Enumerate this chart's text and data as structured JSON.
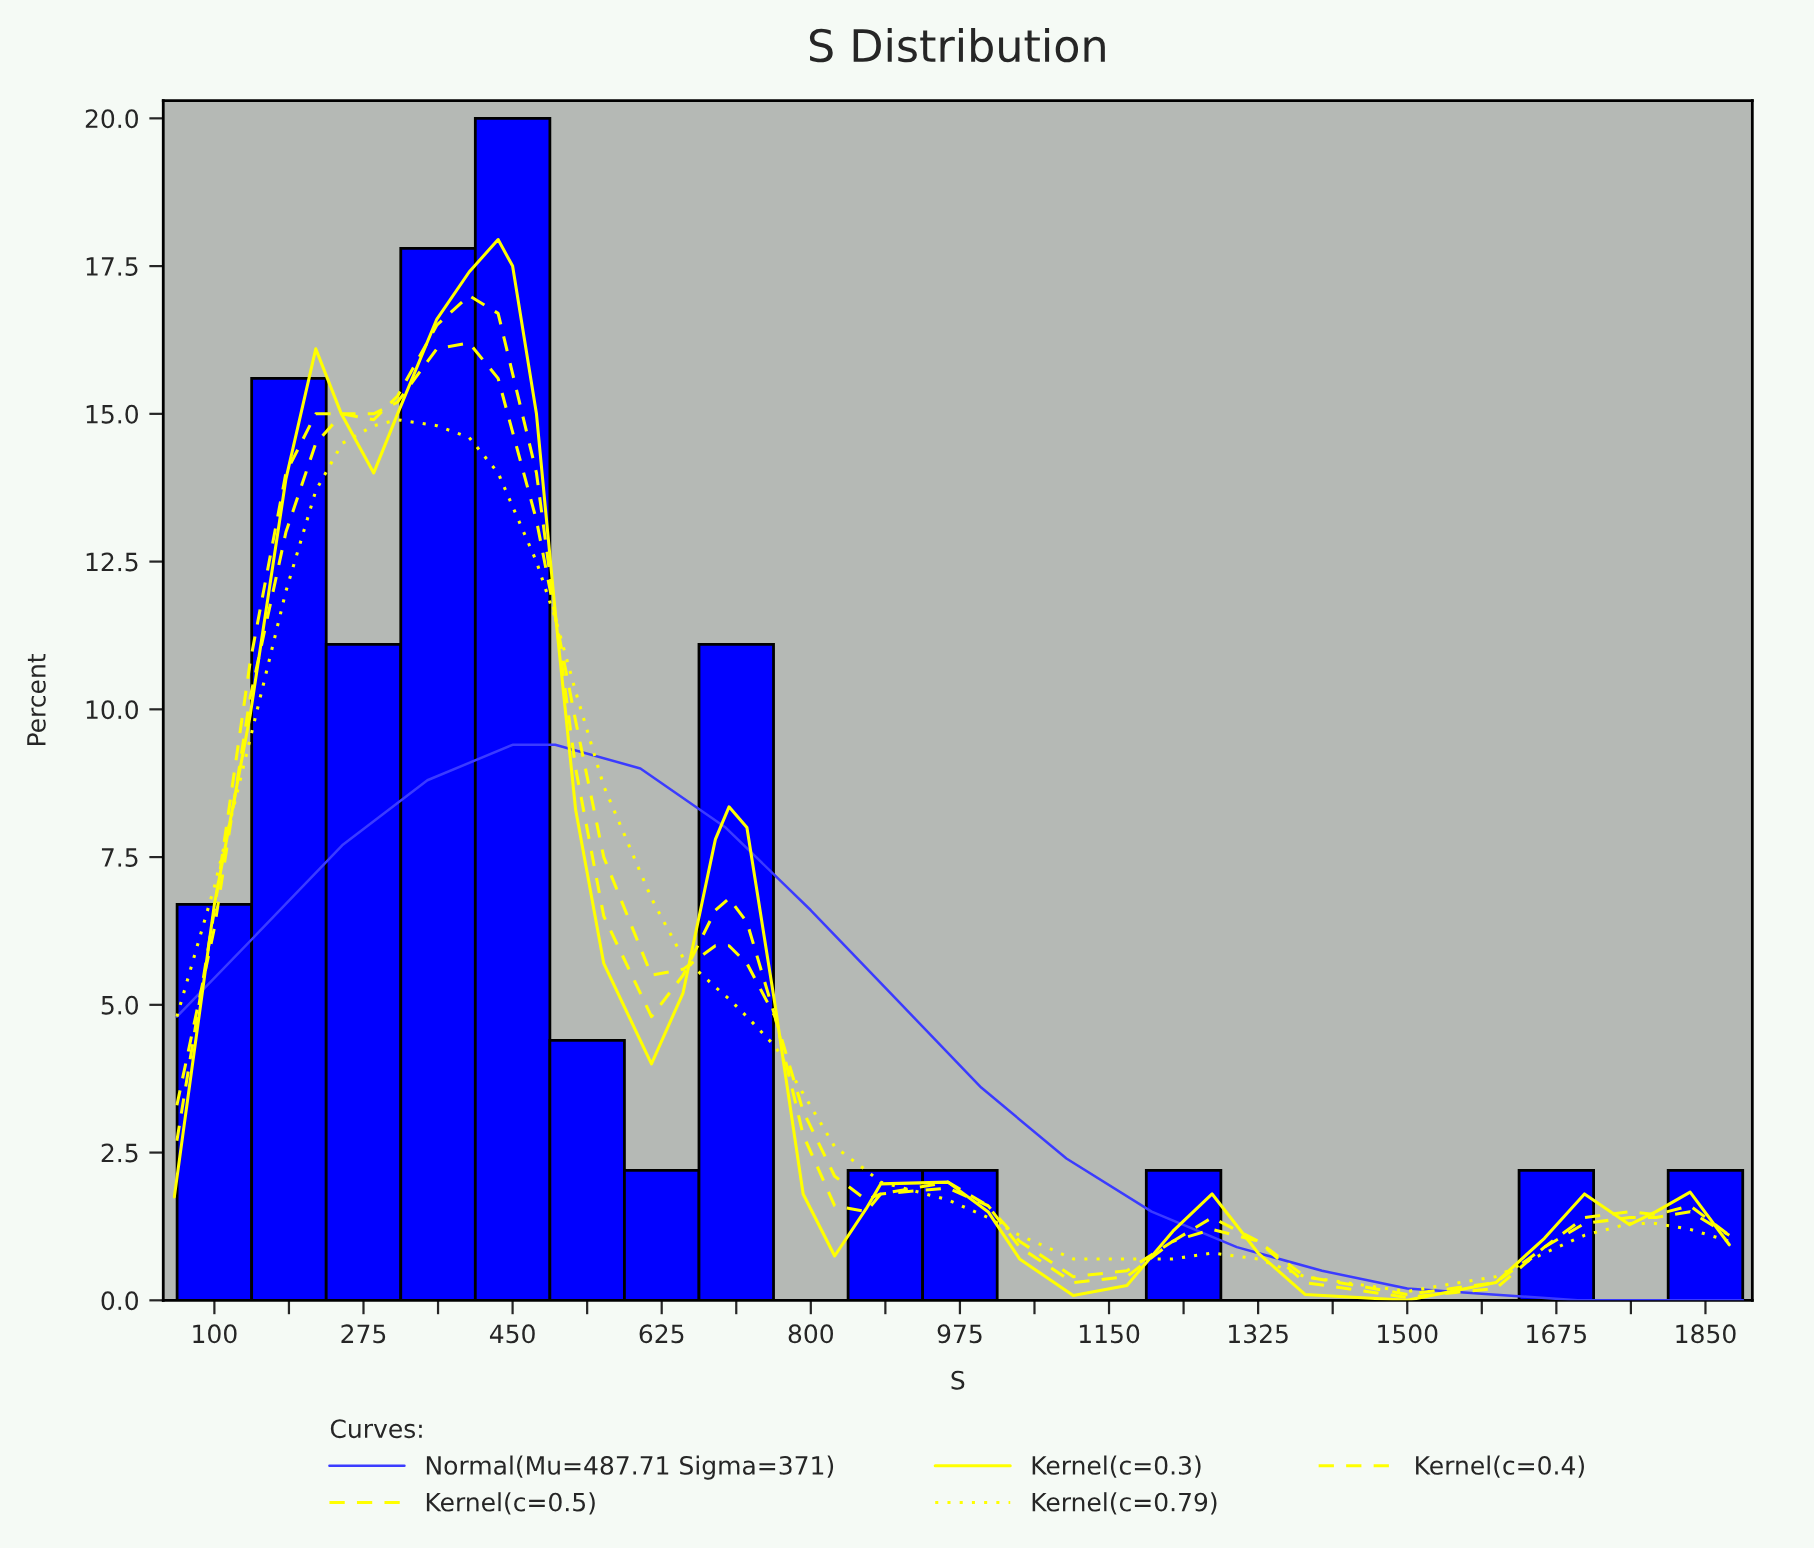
{
  "chart_data": {
    "type": "histogram",
    "title": "S Distribution",
    "xlabel": "S",
    "ylabel": "Percent",
    "legend_title": "Curves:",
    "legend": "bottom",
    "grid": false,
    "bins": [
      56.25,
      143.75,
      231.25,
      318.75,
      406.25,
      493.75,
      581.25,
      668.75,
      756.25,
      843.75,
      931.25,
      1018.75,
      1106.25,
      1193.75,
      1281.25,
      1368.75,
      1456.25,
      1543.75,
      1631.25,
      1718.75,
      1806.25,
      1893.75
    ],
    "values": [
      6.7,
      15.6,
      11.1,
      17.8,
      20.0,
      4.4,
      2.2,
      11.1,
      0,
      2.2,
      2.2,
      0,
      0,
      2.2,
      0,
      0,
      0,
      0,
      2.2,
      0,
      2.2
    ],
    "color": "#0000ff",
    "xlim": [
      40,
      1905
    ],
    "ylim": [
      0,
      20.3
    ],
    "xticks": [
      100,
      {
        "value": 187.5,
        "label": null
      },
      275,
      {
        "value": 362.5,
        "label": null
      },
      450,
      {
        "value": 537.5,
        "label": null
      },
      625,
      {
        "value": 712.5,
        "label": null
      },
      800,
      {
        "value": 887.5,
        "label": null
      },
      975,
      {
        "value": 1062.5,
        "label": null
      },
      1150,
      {
        "value": 1237.5,
        "label": null
      },
      1325,
      {
        "value": 1412.5,
        "label": null
      },
      1500,
      {
        "value": 1587.5,
        "label": null
      },
      1675,
      {
        "value": 1762.5,
        "label": null
      },
      1850
    ],
    "yticks": [
      {
        "value": 0,
        "label": "0.0"
      },
      {
        "value": 2.5,
        "label": "2.5"
      },
      {
        "value": 5,
        "label": "5.0"
      },
      {
        "value": 7.5,
        "label": "7.5"
      },
      {
        "value": 10,
        "label": "10.0"
      },
      {
        "value": 12.5,
        "label": "12.5"
      },
      {
        "value": 15,
        "label": "15.0"
      },
      {
        "value": 17.5,
        "label": "17.5"
      },
      {
        "value": 20,
        "label": "20.0"
      }
    ],
    "series": [
      {
        "type": "line",
        "name": "Normal(Mu=487.71 Sigma=371)",
        "color": "#3b3bff",
        "line_style": "solid",
        "x": [
          56,
          150,
          250,
          350,
          450,
          500,
          600,
          700,
          800,
          900,
          1000,
          1100,
          1200,
          1300,
          1400,
          1500,
          1600,
          1700,
          1800,
          1894
        ],
        "values": [
          4.8,
          6.2,
          7.7,
          8.8,
          9.4,
          9.4,
          9.0,
          8.0,
          6.6,
          5.1,
          3.6,
          2.4,
          1.5,
          0.9,
          0.5,
          0.2,
          0.1,
          0.0,
          0.0,
          0.0
        ]
      },
      {
        "type": "line",
        "name": "Kernel(c=0.3)",
        "color": "#ffff00",
        "line_style": "solid",
        "x": [
          53,
          100,
          142,
          184,
          219,
          249,
          287,
          315,
          361,
          399,
          433,
          450,
          478,
          501,
          524,
          557,
          613,
          650,
          688,
          704,
          725,
          758,
          791,
          828,
          865,
          882,
          961,
          1008,
          1045,
          1108,
          1171,
          1225,
          1271,
          1325,
          1380,
          1500,
          1604,
          1661,
          1708,
          1761,
          1792,
          1832,
          1878
        ],
        "values": [
          1.75,
          6.7,
          9.9,
          13.9,
          16.1,
          15.0,
          14.0,
          15.0,
          16.6,
          17.4,
          17.95,
          17.5,
          15.0,
          11.5,
          8.3,
          5.7,
          4.0,
          5.2,
          7.8,
          8.35,
          8.0,
          5.0,
          1.8,
          0.75,
          1.55,
          1.97,
          2.0,
          1.5,
          0.7,
          0.08,
          0.25,
          1.17,
          1.8,
          0.8,
          0.1,
          0.0,
          0.3,
          1.05,
          1.8,
          1.28,
          1.5,
          1.83,
          0.94
        ]
      },
      {
        "type": "line",
        "name": "Kernel(c=0.4)",
        "color": "#ffff00",
        "line_style": "dashed",
        "x": [
          56,
          100,
          142,
          184,
          219,
          250,
          287,
          315,
          361,
          399,
          433,
          478,
          501,
          524,
          557,
          613,
          650,
          688,
          704,
          725,
          758,
          791,
          828,
          865,
          882,
          961,
          1008,
          1045,
          1108,
          1171,
          1225,
          1271,
          1325,
          1380,
          1500,
          1604,
          1661,
          1708,
          1761,
          1792,
          1832,
          1878
        ],
        "values": [
          2.7,
          6.6,
          10.8,
          14.0,
          15.0,
          15.0,
          14.9,
          15.3,
          16.5,
          17.0,
          16.7,
          14.0,
          11.5,
          9.0,
          6.5,
          4.8,
          5.5,
          6.6,
          6.8,
          6.4,
          4.8,
          2.8,
          1.6,
          1.5,
          1.8,
          2.0,
          1.6,
          0.9,
          0.3,
          0.4,
          1.0,
          1.4,
          1.0,
          0.3,
          0.05,
          0.2,
          0.9,
          1.4,
          1.5,
          1.45,
          1.6,
          1.1
        ]
      },
      {
        "type": "line",
        "name": "Kernel(c=0.5)",
        "color": "#ffff00",
        "line_style": "dashed",
        "x": [
          56,
          100,
          142,
          184,
          219,
          250,
          287,
          315,
          361,
          399,
          433,
          478,
          501,
          524,
          557,
          613,
          650,
          688,
          704,
          725,
          758,
          791,
          828,
          865,
          882,
          961,
          1008,
          1045,
          1108,
          1171,
          1225,
          1271,
          1325,
          1380,
          1500,
          1604,
          1661,
          1708,
          1761,
          1792,
          1832,
          1878
        ],
        "values": [
          3.3,
          6.3,
          10.2,
          13.0,
          14.5,
          15.0,
          15.0,
          15.2,
          16.1,
          16.2,
          15.6,
          13.2,
          11.5,
          9.8,
          7.5,
          5.5,
          5.6,
          6.0,
          6.0,
          5.7,
          4.8,
          3.2,
          2.1,
          1.7,
          1.8,
          1.9,
          1.6,
          1.0,
          0.4,
          0.5,
          1.0,
          1.2,
          1.0,
          0.4,
          0.1,
          0.3,
          0.9,
          1.3,
          1.4,
          1.4,
          1.5,
          1.1
        ]
      },
      {
        "type": "line",
        "name": "Kernel(c=0.79)",
        "color": "#ffff00",
        "line_style": "dotted",
        "x": [
          56,
          100,
          142,
          184,
          219,
          250,
          287,
          315,
          361,
          399,
          433,
          478,
          501,
          524,
          557,
          613,
          650,
          688,
          704,
          725,
          758,
          791,
          828,
          865,
          882,
          961,
          1008,
          1045,
          1108,
          1171,
          1225,
          1271,
          1325,
          1380,
          1500,
          1604,
          1661,
          1708,
          1761,
          1792,
          1832,
          1878
        ],
        "values": [
          4.8,
          7.0,
          9.5,
          12.0,
          13.7,
          14.5,
          14.8,
          14.9,
          14.8,
          14.6,
          14.0,
          12.5,
          11.5,
          10.3,
          8.7,
          6.8,
          5.8,
          5.3,
          5.1,
          4.8,
          4.3,
          3.5,
          2.6,
          2.2,
          2.0,
          1.7,
          1.4,
          1.1,
          0.7,
          0.7,
          0.7,
          0.8,
          0.7,
          0.4,
          0.15,
          0.4,
          0.8,
          1.1,
          1.3,
          1.3,
          1.2,
          1.0
        ]
      }
    ]
  }
}
